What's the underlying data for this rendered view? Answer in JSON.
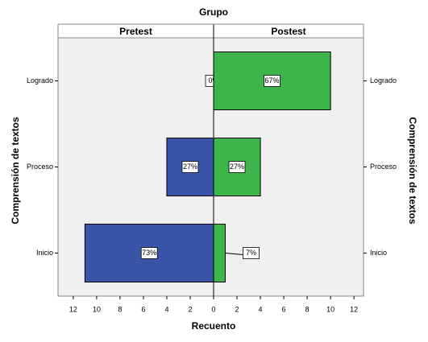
{
  "chart_data": {
    "type": "bar",
    "orientation": "horizontal",
    "title": "Grupo",
    "categories": [
      "Logrado",
      "Proceso",
      "Inicio"
    ],
    "series": [
      {
        "name": "Pretest",
        "color": "#3a54a8",
        "values": [
          0,
          4,
          11
        ],
        "percent_labels": [
          "0%",
          "27%",
          "73%"
        ]
      },
      {
        "name": "Postest",
        "color": "#3db54a",
        "values": [
          10,
          4,
          1
        ],
        "percent_labels": [
          "67%",
          "27%",
          "7%"
        ]
      }
    ],
    "xlabel": "Recuento",
    "ylabel": "Comprensión de textos",
    "xlim": [
      0,
      13.3
    ],
    "xticks": [
      0,
      2,
      4,
      6,
      8,
      10,
      12
    ]
  }
}
